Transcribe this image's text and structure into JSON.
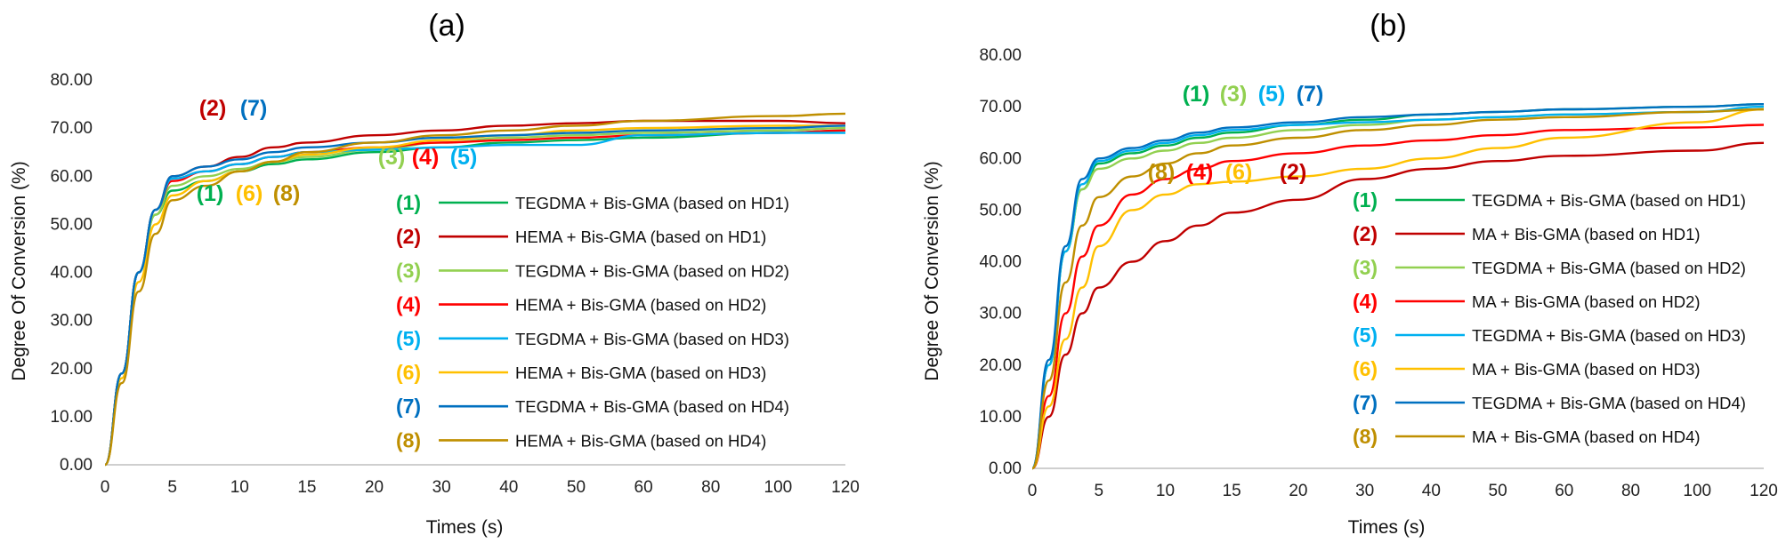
{
  "chart_data": [
    {
      "id": "a",
      "type": "line",
      "title": "(a)",
      "xlabel": "Times (s)",
      "ylabel": "Degree Of Conversion (%)",
      "ylim": [
        0,
        80
      ],
      "y_ticks": [
        "0.00",
        "10.00",
        "20.00",
        "30.00",
        "40.00",
        "50.00",
        "60.00",
        "70.00",
        "80.00"
      ],
      "x_ticks": [
        "0",
        "5",
        "10",
        "15",
        "20",
        "30",
        "40",
        "50",
        "60",
        "80",
        "100",
        "120"
      ],
      "grid": false,
      "legend_position": "lower-right",
      "series": [
        {
          "num": "(1)",
          "name": "TEGDMA + Bis-GMA (based on HD1)",
          "color": "#00b050",
          "values": [
            0,
            19,
            40,
            52,
            57,
            59,
            61,
            62.5,
            63.5,
            65,
            66,
            67,
            67.5,
            68,
            69,
            69.5
          ]
        },
        {
          "num": "(2)",
          "name": "HEMA + Bis-GMA (based on HD1)",
          "color": "#c00000",
          "values": [
            0,
            19,
            40,
            53,
            60,
            62,
            64,
            66,
            67,
            68.5,
            69.5,
            70.5,
            71,
            71.5,
            71.5,
            71
          ]
        },
        {
          "num": "(3)",
          "name": "TEGDMA + Bis-GMA (based on HD2)",
          "color": "#92d050",
          "values": [
            0,
            19,
            40,
            52,
            58,
            60,
            61.5,
            63,
            64,
            65.5,
            67,
            68,
            68.5,
            69,
            69.5,
            70
          ]
        },
        {
          "num": "(4)",
          "name": "HEMA + Bis-GMA (based on HD2)",
          "color": "#ff0000",
          "values": [
            0,
            19,
            40,
            53,
            59,
            61,
            62.5,
            64,
            65,
            66,
            67,
            67.5,
            68,
            68.5,
            69,
            69.5
          ]
        },
        {
          "num": "(5)",
          "name": "TEGDMA + Bis-GMA (based on HD3)",
          "color": "#00b0f0",
          "values": [
            0,
            19,
            40,
            53,
            59.5,
            61,
            62.5,
            64,
            65,
            65.5,
            66,
            66.5,
            66.5,
            68.5,
            69,
            69
          ]
        },
        {
          "num": "(6)",
          "name": "HEMA + Bis-GMA (based on HD3)",
          "color": "#ffc000",
          "values": [
            0,
            18,
            38,
            50,
            56,
            59,
            61,
            63,
            64.5,
            66,
            67.5,
            68.5,
            69.5,
            70,
            70.5,
            70.5
          ]
        },
        {
          "num": "(7)",
          "name": "TEGDMA + Bis-GMA (based on HD4)",
          "color": "#0070c0",
          "values": [
            0,
            19,
            40,
            53,
            60,
            62,
            63.5,
            65,
            66,
            67,
            68,
            68.5,
            69,
            69.5,
            70,
            70.5
          ]
        },
        {
          "num": "(8)",
          "name": "HEMA + Bis-GMA (based on HD4)",
          "color": "#bf8f00",
          "values": [
            0,
            17,
            36,
            48,
            55,
            58,
            61,
            63,
            65,
            67,
            68.5,
            69.5,
            70.5,
            71.5,
            72.5,
            73
          ]
        }
      ],
      "annotations": [
        {
          "text": "(2)",
          "color": "#c00000"
        },
        {
          "text": "(7)",
          "color": "#0070c0"
        },
        {
          "text": "(3)",
          "color": "#92d050"
        },
        {
          "text": "(4)",
          "color": "#ff0000"
        },
        {
          "text": "(5)",
          "color": "#00b0f0"
        },
        {
          "text": "(1)",
          "color": "#00b050"
        },
        {
          "text": "(6)",
          "color": "#ffc000"
        },
        {
          "text": "(8)",
          "color": "#bf8f00"
        }
      ]
    },
    {
      "id": "b",
      "type": "line",
      "title": "(b)",
      "xlabel": "Times (s)",
      "ylabel": "Degree Of Conversion (%)",
      "ylim": [
        0,
        80
      ],
      "y_ticks": [
        "0.00",
        "10.00",
        "20.00",
        "30.00",
        "40.00",
        "50.00",
        "60.00",
        "70.00",
        "80.00"
      ],
      "x_ticks": [
        "0",
        "5",
        "10",
        "15",
        "20",
        "30",
        "40",
        "50",
        "60",
        "80",
        "100",
        "120"
      ],
      "grid": false,
      "legend_position": "lower-right",
      "series": [
        {
          "num": "(1)",
          "name": "TEGDMA + Bis-GMA (based on HD1)",
          "color": "#00b050",
          "values": [
            0,
            20,
            42,
            54,
            59,
            61,
            62.5,
            64,
            65,
            66.5,
            67.5,
            68.5,
            69,
            69.5,
            70,
            70.5
          ]
        },
        {
          "num": "(2)",
          "name": "MA + Bis-GMA (based on HD1)",
          "color": "#c00000",
          "values": [
            0,
            10,
            22,
            30,
            35,
            40,
            44,
            47,
            49.5,
            52,
            56,
            58,
            59.5,
            60.5,
            61.5,
            63
          ]
        },
        {
          "num": "(3)",
          "name": "TEGDMA + Bis-GMA (based on HD2)",
          "color": "#92d050",
          "values": [
            0,
            20,
            42,
            54,
            58,
            60,
            61.5,
            63,
            64,
            65.5,
            66.5,
            67.5,
            68,
            68.5,
            69,
            69.5
          ]
        },
        {
          "num": "(4)",
          "name": "MA + Bis-GMA (based on HD2)",
          "color": "#ff0000",
          "values": [
            0,
            14,
            30,
            41,
            47,
            53,
            56,
            58,
            59.5,
            61,
            62.5,
            63.5,
            64.5,
            65.5,
            66,
            66.5
          ]
        },
        {
          "num": "(5)",
          "name": "TEGDMA + Bis-GMA (based on HD3)",
          "color": "#00b0f0",
          "values": [
            0,
            20,
            42,
            55,
            59.5,
            61.5,
            63,
            64.5,
            65.5,
            66.5,
            67,
            67.5,
            68,
            68.5,
            69,
            70
          ]
        },
        {
          "num": "(6)",
          "name": "MA + Bis-GMA (based on HD3)",
          "color": "#ffc000",
          "values": [
            0,
            12,
            25,
            35,
            43,
            50,
            53,
            55,
            55.5,
            56.5,
            58,
            60,
            62,
            64,
            67,
            69.5
          ]
        },
        {
          "num": "(7)",
          "name": "TEGDMA + Bis-GMA (based on HD4)",
          "color": "#0070c0",
          "values": [
            0,
            21,
            43,
            56,
            60,
            62,
            63.5,
            65,
            66,
            67,
            68,
            68.5,
            69,
            69.5,
            70,
            70.5
          ]
        },
        {
          "num": "(8)",
          "name": "MA + Bis-GMA (based on HD4)",
          "color": "#bf8f00",
          "values": [
            0,
            17,
            36,
            47,
            52.5,
            56.5,
            59,
            61,
            62.5,
            64,
            65.5,
            66.5,
            67.5,
            68,
            69,
            69.5
          ]
        }
      ],
      "annotations": [
        {
          "text": "(1)",
          "color": "#00b050"
        },
        {
          "text": "(3)",
          "color": "#92d050"
        },
        {
          "text": "(5)",
          "color": "#00b0f0"
        },
        {
          "text": "(7)",
          "color": "#0070c0"
        },
        {
          "text": "(8)",
          "color": "#bf8f00"
        },
        {
          "text": "(4)",
          "color": "#ff0000"
        },
        {
          "text": "(6)",
          "color": "#ffc000"
        },
        {
          "text": "(2)",
          "color": "#c00000"
        }
      ]
    }
  ]
}
